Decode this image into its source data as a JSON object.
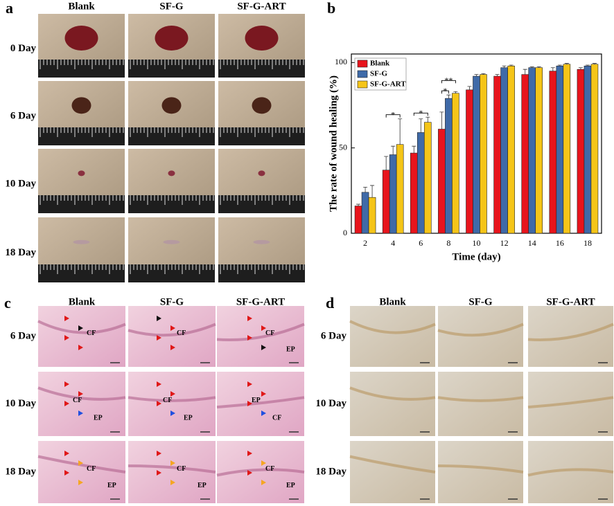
{
  "panel_labels": [
    "a",
    "b",
    "c",
    "d"
  ],
  "photo_panel": {
    "columns": [
      "Blank",
      "SF-G",
      "SF-G-ART"
    ],
    "rows": [
      "0 Day",
      "6 Day",
      "10 Day",
      "18 Day"
    ]
  },
  "he_panel": {
    "columns": [
      "Blank",
      "SF-G",
      "SF-G-ART"
    ],
    "rows": [
      "6 Day",
      "10 Day",
      "18 Day"
    ],
    "cells": [
      [
        [
          "CF"
        ],
        [
          "CF"
        ],
        [
          "CF",
          "EP"
        ]
      ],
      [
        [
          "CF",
          "EP"
        ],
        [
          "CF",
          "EP"
        ],
        [
          "EP",
          "CF"
        ]
      ],
      [
        [
          "CF",
          "EP"
        ],
        [
          "CF",
          "EP"
        ],
        [
          "CF",
          "EP"
        ]
      ]
    ]
  },
  "ihc_panel": {
    "columns": [
      "Blank",
      "SF-G",
      "SF-G-ART"
    ],
    "rows": [
      "6 Day",
      "10 Day",
      "18 Day"
    ]
  },
  "chart_data": {
    "type": "bar",
    "y_label": "The rate of wound healing (%)",
    "x_label": "Time (day)",
    "categories": [
      "2",
      "4",
      "6",
      "8",
      "10",
      "12",
      "14",
      "16",
      "18"
    ],
    "series": [
      {
        "name": "Blank",
        "color": "#e8141c",
        "values": [
          16,
          37,
          47,
          61,
          84,
          92,
          93,
          95,
          96
        ],
        "errors": [
          1,
          8,
          4,
          10,
          2,
          1,
          3,
          2,
          1
        ]
      },
      {
        "name": "SF-G",
        "color": "#3f6aa8",
        "values": [
          24,
          46,
          59,
          79,
          92,
          97,
          97,
          98,
          98
        ],
        "errors": [
          3,
          5,
          8,
          2,
          1,
          1,
          0.5,
          0.5,
          0.5
        ]
      },
      {
        "name": "SF-G-ART",
        "color": "#f5c518",
        "values": [
          21,
          52,
          65,
          82,
          93,
          98,
          97,
          99,
          99
        ],
        "errors": [
          7,
          15,
          3,
          1,
          0.5,
          0.5,
          0.5,
          0.5,
          0.5
        ]
      }
    ],
    "ylim": [
      0,
      105
    ],
    "yticks": [
      0,
      50,
      100
    ],
    "legend": "upper left",
    "annotations": [
      {
        "text": "*",
        "category": "4",
        "series": [
          "Blank",
          "SF-G-ART"
        ]
      },
      {
        "text": "*",
        "category": "6",
        "series": [
          "Blank",
          "SF-G-ART"
        ]
      },
      {
        "text": "*",
        "category": "8",
        "series": [
          "Blank",
          "SF-G"
        ]
      },
      {
        "text": "**",
        "category": "8",
        "series": [
          "Blank",
          "SF-G-ART"
        ]
      }
    ]
  }
}
